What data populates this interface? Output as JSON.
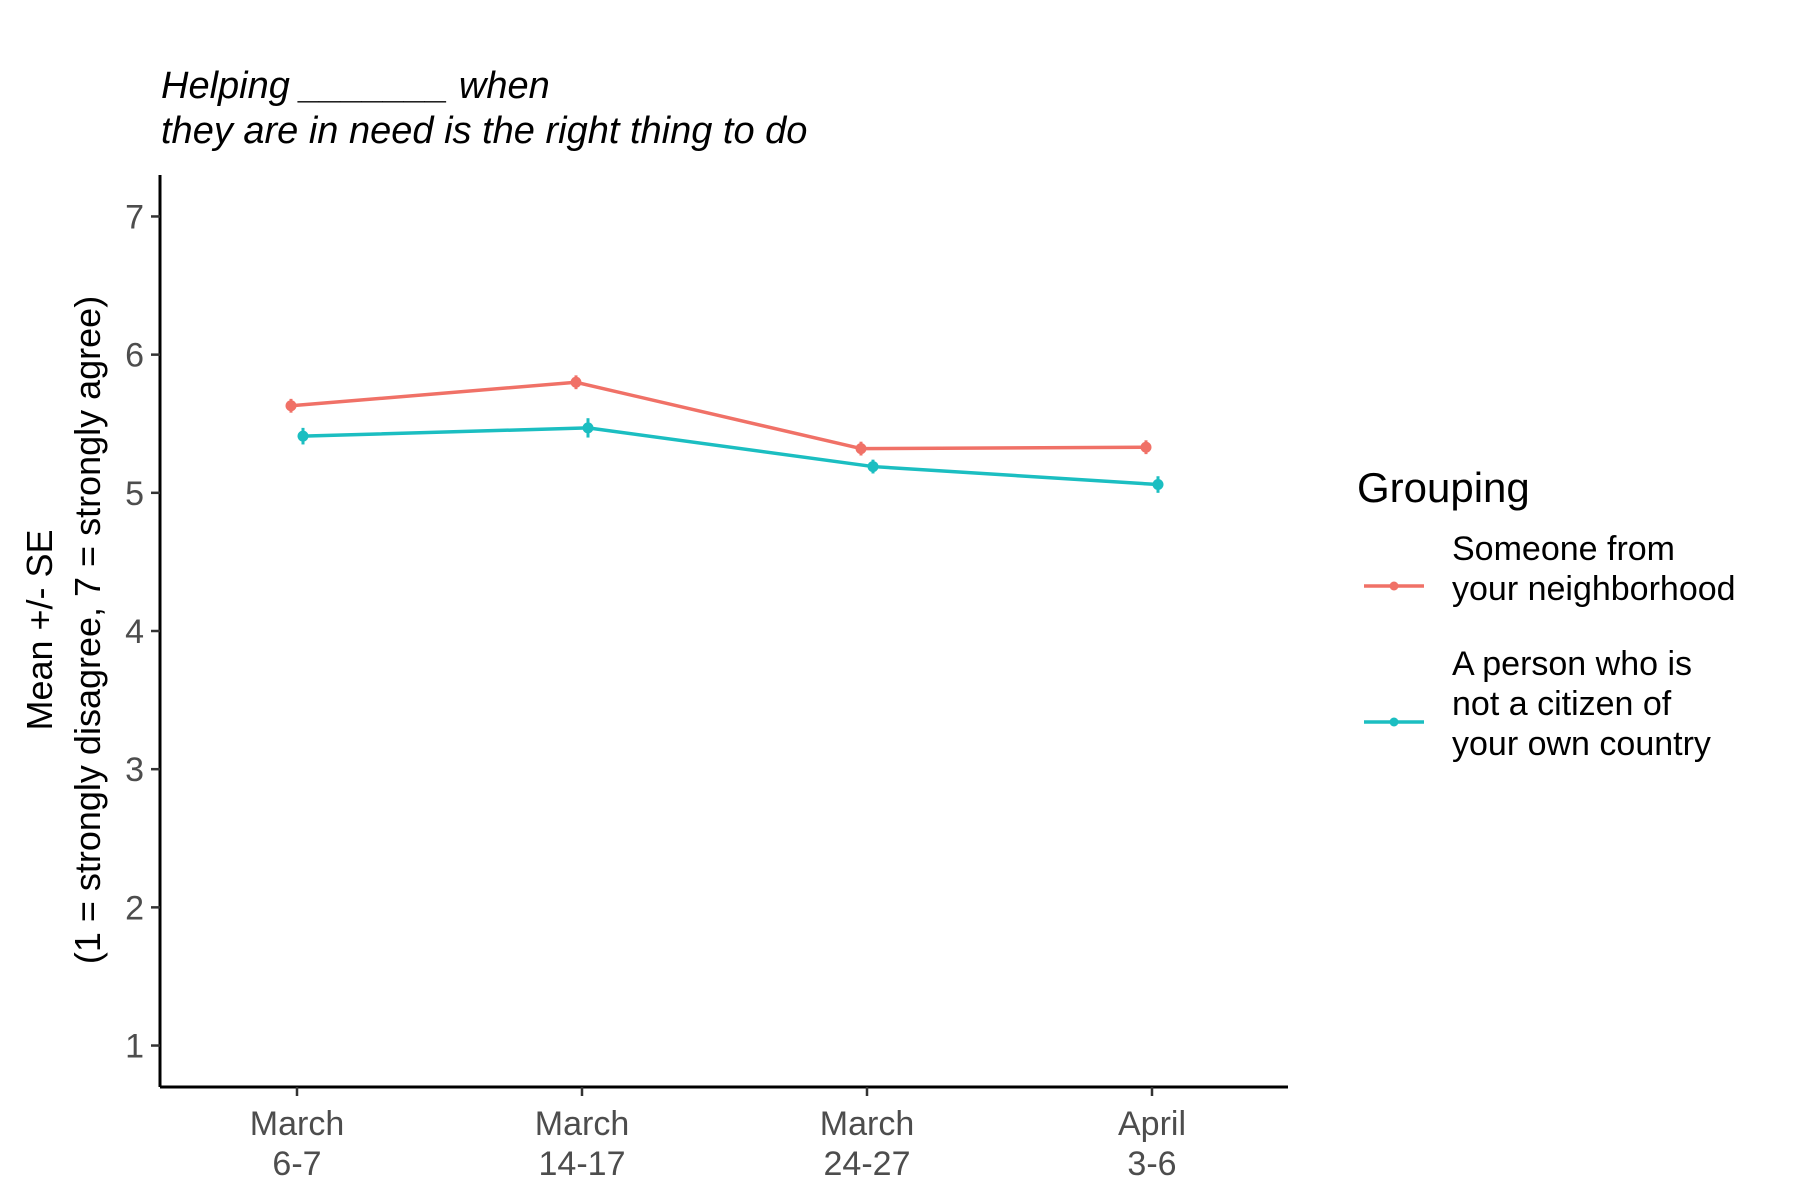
{
  "chart_data": {
    "type": "line",
    "title_lines": [
      "Helping _______ when",
      "they are in need is the right thing to do"
    ],
    "ylabel_lines": [
      "Mean +/- SE",
      "(1 = strongly disagree, 7 = strongly agree)"
    ],
    "xlabel": "",
    "categories": [
      [
        "March",
        "6-7"
      ],
      [
        "March",
        "14-17"
      ],
      [
        "March",
        "24-27"
      ],
      [
        "April",
        "3-6"
      ]
    ],
    "ylim": [
      0.7,
      7.3
    ],
    "yticks": [
      1,
      2,
      3,
      4,
      5,
      6,
      7
    ],
    "grid": false,
    "legend": {
      "title": "Grouping",
      "placement": "right"
    },
    "series": [
      {
        "name_lines": [
          "Someone from",
          "your neighborhood"
        ],
        "color": "#f07167",
        "values": [
          5.63,
          5.8,
          5.32,
          5.33
        ],
        "se": [
          0.05,
          0.05,
          0.05,
          0.05
        ]
      },
      {
        "name_lines": [
          "A person who is",
          "not a citizen of",
          "your own country"
        ],
        "color": "#1bbec1",
        "values": [
          5.41,
          5.47,
          5.19,
          5.06
        ],
        "se": [
          0.06,
          0.07,
          0.05,
          0.06
        ]
      }
    ]
  }
}
